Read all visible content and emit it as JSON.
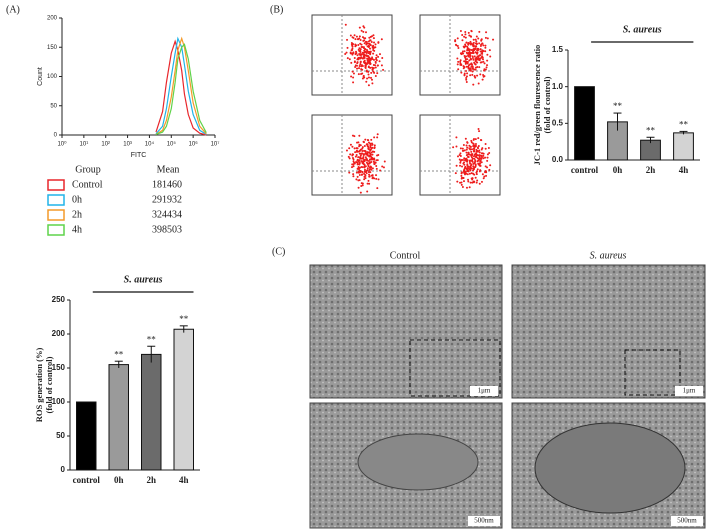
{
  "panel_labels": [
    "(A)",
    "(B)",
    "(C)"
  ],
  "micrographs": {
    "control": "Control",
    "treated": "S. aureus",
    "scale_bars": [
      "1μm",
      "1μm",
      "500nm",
      "500nm"
    ]
  },
  "chart_data": [
    {
      "type": "line",
      "xlog": true,
      "xlabel": "FITC",
      "ylabel": "Count",
      "x": [
        20000,
        40000,
        60000,
        100000,
        150000,
        200000,
        300000,
        400000,
        600000,
        1000000,
        2000000,
        4000000
      ],
      "xlim": [
        1,
        10000000
      ],
      "xticks": [
        {
          "value": 1,
          "label": "10⁰"
        },
        {
          "value": 10,
          "label": "10¹"
        },
        {
          "value": 100,
          "label": "10²"
        },
        {
          "value": 1000,
          "label": "10³"
        },
        {
          "value": 10000,
          "label": "10⁴"
        },
        {
          "value": 100000,
          "label": "10⁵"
        },
        {
          "value": 1000000,
          "label": "10⁶"
        },
        {
          "value": 10000000,
          "label": "10⁷"
        }
      ],
      "ylim": [
        0,
        200
      ],
      "yticks": [
        0,
        50,
        100,
        150,
        200
      ],
      "legend_title": "Group",
      "stat_title": "Mean",
      "series": [
        {
          "name": "Control",
          "color": "#e8262b",
          "mean": 181460,
          "values": [
            5,
            40,
            90,
            140,
            160,
            145,
            110,
            70,
            35,
            12,
            3,
            0
          ]
        },
        {
          "name": "0h",
          "color": "#20b4e8",
          "mean": 291932,
          "values": [
            2,
            15,
            45,
            100,
            140,
            165,
            150,
            120,
            75,
            35,
            8,
            1
          ]
        },
        {
          "name": "2h",
          "color": "#f49a2a",
          "mean": 324434,
          "values": [
            1,
            8,
            25,
            65,
            110,
            145,
            165,
            150,
            110,
            55,
            15,
            2
          ]
        },
        {
          "name": "4h",
          "color": "#5fd34a",
          "mean": 398503,
          "values": [
            1,
            5,
            15,
            45,
            90,
            130,
            150,
            155,
            130,
            75,
            25,
            4
          ]
        }
      ]
    },
    {
      "type": "bar",
      "group_label": "S. aureus",
      "ylabel": [
        "ROS generation (%)",
        "(fold of control)"
      ],
      "categories": [
        "control",
        "0h",
        "2h",
        "4h"
      ],
      "values": [
        100,
        155,
        170,
        207
      ],
      "errors": [
        0,
        5,
        12,
        5
      ],
      "colors": [
        "#000000",
        "#9a9a9a",
        "#6b6b6b",
        "#d3d3d3"
      ],
      "annotations": [
        null,
        "**",
        "**",
        "**"
      ],
      "ylim": [
        0,
        250
      ],
      "yticks": [
        0,
        50,
        100,
        150,
        200,
        250
      ]
    },
    {
      "type": "bar",
      "group_label": "S. aureus",
      "ylabel": [
        "JC-1 red/green flourescence ratio",
        "(fold of control)"
      ],
      "categories": [
        "control",
        "0h",
        "2h",
        "4h"
      ],
      "values": [
        1.0,
        0.52,
        0.27,
        0.37
      ],
      "errors": [
        0,
        0.12,
        0.04,
        0.02
      ],
      "colors": [
        "#000000",
        "#9a9a9a",
        "#6b6b6b",
        "#d3d3d3"
      ],
      "annotations": [
        null,
        "**",
        "**",
        "**"
      ],
      "ylim": [
        0,
        1.5
      ],
      "yticks": [
        {
          "value": 0,
          "label": "0.0"
        },
        {
          "value": 0.5,
          "label": "0.5"
        },
        {
          "value": 1,
          "label": "1.0"
        },
        {
          "value": 1.5,
          "label": "1.5"
        }
      ]
    }
  ]
}
